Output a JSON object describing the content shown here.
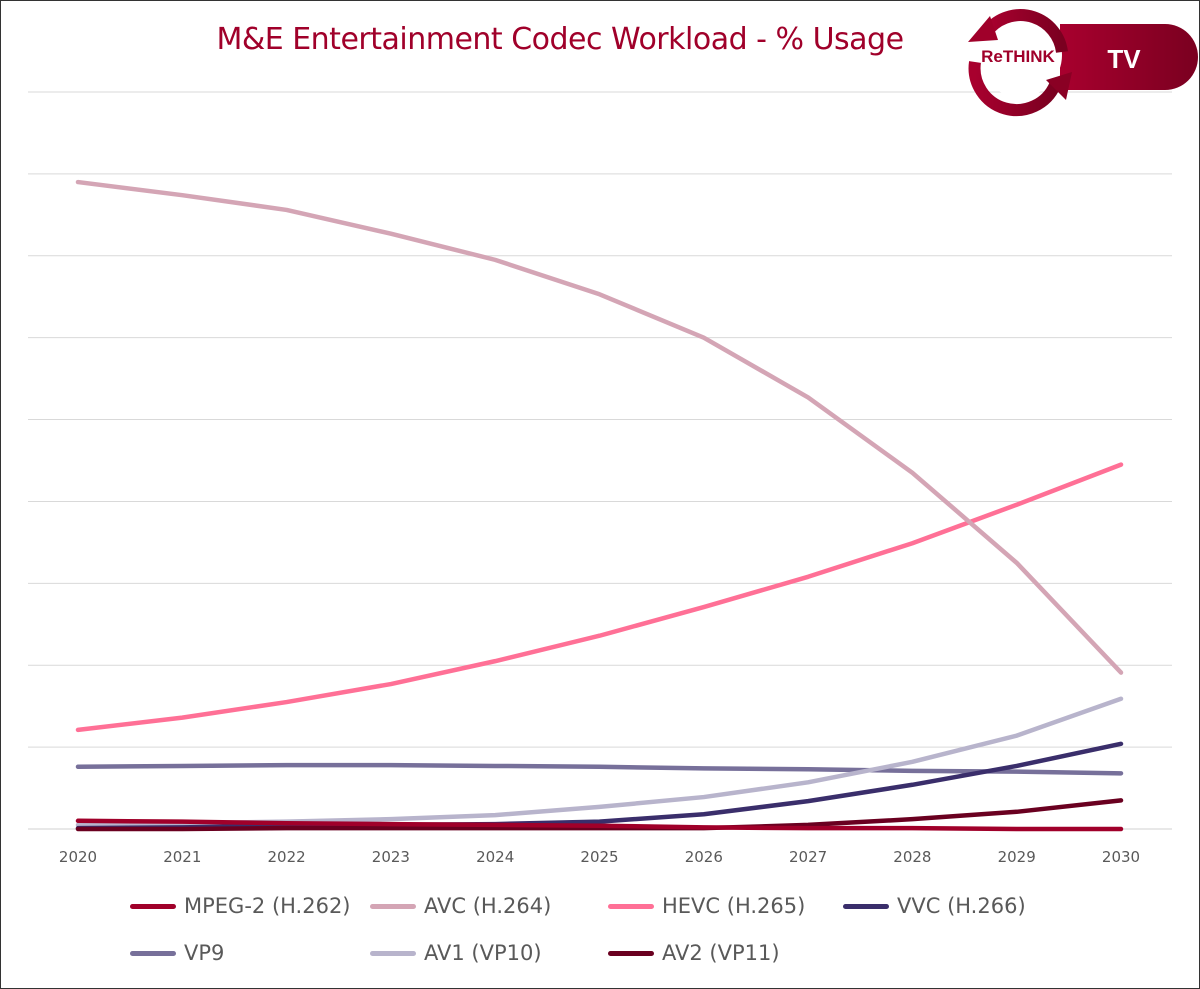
{
  "chart_data": {
    "type": "line",
    "title": "M&E Entertainment Codec Workload - % Usage",
    "xlabel": "",
    "ylabel": "",
    "x": [
      "2020",
      "2021",
      "2022",
      "2023",
      "2024",
      "2025",
      "2026",
      "2027",
      "2028",
      "2029",
      "2030"
    ],
    "ylim": [
      0,
      90
    ],
    "grid": true,
    "y_tick_labels_shown": false,
    "legend_position": "bottom",
    "series": [
      {
        "name": "MPEG-2 (H.262)",
        "color": "#A0002A",
        "values": [
          1.0,
          0.9,
          0.7,
          0.6,
          0.5,
          0.4,
          0.2,
          0.1,
          0.1,
          0,
          0
        ]
      },
      {
        "name": "AVC (H.264)",
        "color": "#D4A5B5",
        "values": [
          79.0,
          77.4,
          75.6,
          72.7,
          69.5,
          65.3,
          60.0,
          52.7,
          43.5,
          32.5,
          19.1
        ]
      },
      {
        "name": "HEVC (H.265)",
        "color": "#FF7096",
        "values": [
          12.1,
          13.6,
          15.5,
          17.7,
          20.5,
          23.6,
          27.1,
          30.8,
          34.9,
          39.6,
          44.5
        ]
      },
      {
        "name": "VVC (H.266)",
        "color": "#3A2E6B",
        "values": [
          0.1,
          0.2,
          0.4,
          0.5,
          0.6,
          0.9,
          1.8,
          3.4,
          5.4,
          7.7,
          10.4
        ]
      },
      {
        "name": "VP9",
        "color": "#77709A",
        "values": [
          7.6,
          7.7,
          7.8,
          7.8,
          7.7,
          7.6,
          7.4,
          7.3,
          7.1,
          7.0,
          6.8
        ]
      },
      {
        "name": "AV1 (VP10)",
        "color": "#B8B4CC",
        "values": [
          0.5,
          0.7,
          0.9,
          1.2,
          1.7,
          2.7,
          3.9,
          5.7,
          8.2,
          11.4,
          15.9
        ]
      },
      {
        "name": "AV2 (VP11)",
        "color": "#6A0020",
        "values": [
          0,
          0,
          0.1,
          0.1,
          0.1,
          0.1,
          0.1,
          0.5,
          1.2,
          2.1,
          3.5
        ]
      }
    ]
  },
  "logo": {
    "text": "ReTHINK",
    "badge": "TV",
    "color": "#A0002A"
  }
}
